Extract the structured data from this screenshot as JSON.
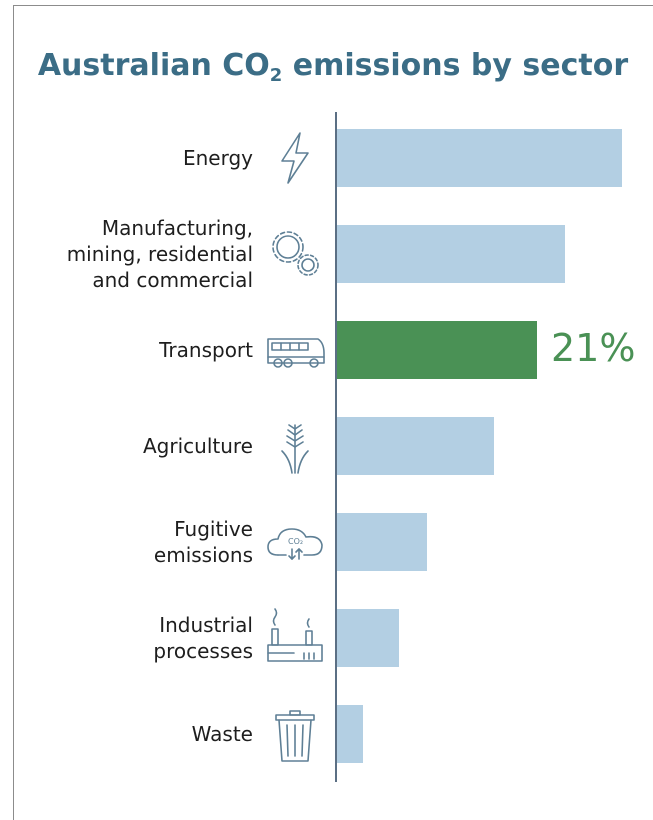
{
  "title_main": "Australian CO",
  "title_sub": "2",
  "title_rest": " emissions by sector",
  "colors": {
    "bar": "#b3cfe3",
    "highlight": "#4a9155",
    "title": "#3b6d86"
  },
  "chart_data": {
    "type": "bar",
    "orientation": "horizontal",
    "categories": [
      "Energy",
      "Manufacturing, mining, residential and commercial",
      "Transport",
      "Agriculture",
      "Fugitive emissions",
      "Industrial processes",
      "Waste"
    ],
    "category_lines": [
      [
        "Energy"
      ],
      [
        "Manufacturing,",
        "mining, residential",
        "and commercial"
      ],
      [
        "Transport"
      ],
      [
        "Agriculture"
      ],
      [
        "Fugitive",
        "emissions"
      ],
      [
        "Industrial",
        "processes"
      ],
      [
        "Waste"
      ]
    ],
    "icons": [
      "lightning-icon",
      "gears-icon",
      "bus-icon",
      "wheat-icon",
      "co2-cloud-icon",
      "factory-icon",
      "trash-bin-icon"
    ],
    "values": [
      30,
      24,
      21,
      16.5,
      9.5,
      6.5,
      2.7
    ],
    "highlight_index": 2,
    "data_labels": [
      "",
      "",
      "21%",
      "",
      "",
      "",
      ""
    ],
    "xlim": [
      0,
      31
    ]
  }
}
